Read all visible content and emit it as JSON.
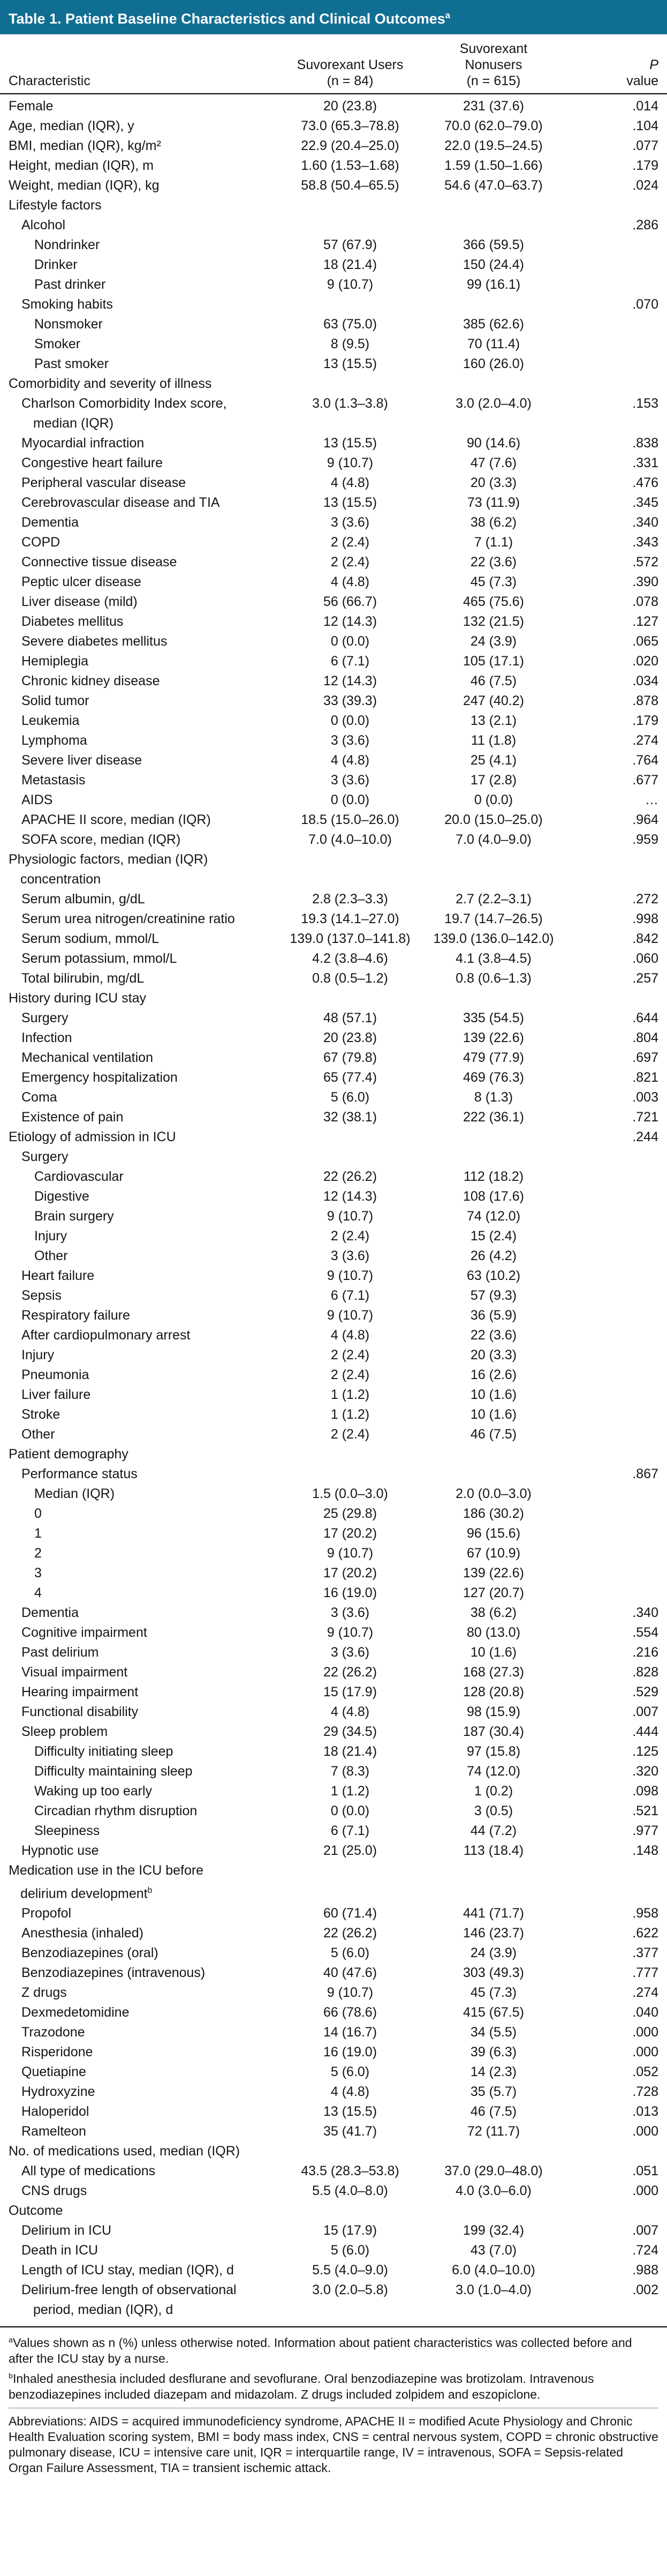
{
  "title": {
    "text": "Table 1. Patient Baseline Characteristics and Clinical Outcomes",
    "sup": "a"
  },
  "colors": {
    "header_bg": "#116e93",
    "header_text": "#ffffff",
    "rule": "#000000"
  },
  "columns": {
    "characteristic": "Characteristic",
    "group1": [
      "Suvorexant Users",
      "(n = 84)"
    ],
    "group2": [
      "Suvorexant",
      "Nonusers",
      "(n = 615)"
    ],
    "p": [
      "P",
      "value"
    ]
  },
  "rows": [
    {
      "label": "Female",
      "indent": 0,
      "c1": "20 (23.8)",
      "c2": "231 (37.6)",
      "p": ".014"
    },
    {
      "label": "Age, median (IQR), y",
      "indent": 0,
      "c1": "73.0 (65.3–78.8)",
      "c2": "70.0 (62.0–79.0)",
      "p": ".104"
    },
    {
      "label": "BMI, median (IQR), kg/m²",
      "indent": 0,
      "c1": "22.9 (20.4–25.0)",
      "c2": "22.0 (19.5–24.5)",
      "p": ".077"
    },
    {
      "label": "Height, median (IQR), m",
      "indent": 0,
      "c1": "1.60 (1.53–1.68)",
      "c2": "1.59 (1.50–1.66)",
      "p": ".179"
    },
    {
      "label": "Weight, median (IQR), kg",
      "indent": 0,
      "c1": "58.8 (50.4–65.5)",
      "c2": "54.6 (47.0–63.7)",
      "p": ".024"
    },
    {
      "label": "Lifestyle factors",
      "indent": 0
    },
    {
      "label": "Alcohol",
      "indent": 1,
      "p": ".286"
    },
    {
      "label": "Nondrinker",
      "indent": 2,
      "c1": "57 (67.9)",
      "c2": "366 (59.5)"
    },
    {
      "label": "Drinker",
      "indent": 2,
      "c1": "18 (21.4)",
      "c2": "150 (24.4)"
    },
    {
      "label": "Past drinker",
      "indent": 2,
      "c1": "9 (10.7)",
      "c2": "99 (16.1)"
    },
    {
      "label": "Smoking habits",
      "indent": 1,
      "p": ".070"
    },
    {
      "label": "Nonsmoker",
      "indent": 2,
      "c1": "63 (75.0)",
      "c2": "385 (62.6)"
    },
    {
      "label": "Smoker",
      "indent": 2,
      "c1": "8 (9.5)",
      "c2": "70 (11.4)"
    },
    {
      "label": "Past smoker",
      "indent": 2,
      "c1": "13 (15.5)",
      "c2": "160 (26.0)"
    },
    {
      "label": "Comorbidity and severity of illness",
      "indent": 0
    },
    {
      "label": "Charlson Comorbidity Index score,\nmedian (IQR)",
      "indent": 1,
      "c1": "3.0 (1.3–3.8)",
      "c2": "3.0 (2.0–4.0)",
      "p": ".153"
    },
    {
      "label": "Myocardial infraction",
      "indent": 1,
      "c1": "13 (15.5)",
      "c2": "90 (14.6)",
      "p": ".838"
    },
    {
      "label": "Congestive heart failure",
      "indent": 1,
      "c1": "9 (10.7)",
      "c2": "47 (7.6)",
      "p": ".331"
    },
    {
      "label": "Peripheral vascular disease",
      "indent": 1,
      "c1": "4 (4.8)",
      "c2": "20 (3.3)",
      "p": ".476"
    },
    {
      "label": "Cerebrovascular disease and TIA",
      "indent": 1,
      "c1": "13 (15.5)",
      "c2": "73 (11.9)",
      "p": ".345"
    },
    {
      "label": "Dementia",
      "indent": 1,
      "c1": "3 (3.6)",
      "c2": "38 (6.2)",
      "p": ".340"
    },
    {
      "label": "COPD",
      "indent": 1,
      "c1": "2 (2.4)",
      "c2": "7 (1.1)",
      "p": ".343"
    },
    {
      "label": "Connective tissue disease",
      "indent": 1,
      "c1": "2 (2.4)",
      "c2": "22 (3.6)",
      "p": ".572"
    },
    {
      "label": "Peptic ulcer disease",
      "indent": 1,
      "c1": "4 (4.8)",
      "c2": "45 (7.3)",
      "p": ".390"
    },
    {
      "label": "Liver disease (mild)",
      "indent": 1,
      "c1": "56 (66.7)",
      "c2": "465 (75.6)",
      "p": ".078"
    },
    {
      "label": "Diabetes mellitus",
      "indent": 1,
      "c1": "12 (14.3)",
      "c2": "132 (21.5)",
      "p": ".127"
    },
    {
      "label": "Severe diabetes mellitus",
      "indent": 1,
      "c1": "0 (0.0)",
      "c2": "24 (3.9)",
      "p": ".065"
    },
    {
      "label": "Hemiplegia",
      "indent": 1,
      "c1": "6 (7.1)",
      "c2": "105 (17.1)",
      "p": ".020"
    },
    {
      "label": "Chronic kidney disease",
      "indent": 1,
      "c1": "12 (14.3)",
      "c2": "46 (7.5)",
      "p": ".034"
    },
    {
      "label": "Solid tumor",
      "indent": 1,
      "c1": "33 (39.3)",
      "c2": "247 (40.2)",
      "p": ".878"
    },
    {
      "label": "Leukemia",
      "indent": 1,
      "c1": "0 (0.0)",
      "c2": "13 (2.1)",
      "p": ".179"
    },
    {
      "label": "Lymphoma",
      "indent": 1,
      "c1": "3 (3.6)",
      "c2": "11 (1.8)",
      "p": ".274"
    },
    {
      "label": "Severe liver disease",
      "indent": 1,
      "c1": "4 (4.8)",
      "c2": "25 (4.1)",
      "p": ".764"
    },
    {
      "label": "Metastasis",
      "indent": 1,
      "c1": "3 (3.6)",
      "c2": "17 (2.8)",
      "p": ".677"
    },
    {
      "label": "AIDS",
      "indent": 1,
      "c1": "0 (0.0)",
      "c2": "0 (0.0)",
      "p": "…"
    },
    {
      "label": "APACHE II score, median (IQR)",
      "indent": 1,
      "c1": "18.5 (15.0–26.0)",
      "c2": "20.0 (15.0–25.0)",
      "p": ".964"
    },
    {
      "label": "SOFA score, median (IQR)",
      "indent": 1,
      "c1": "7.0 (4.0–10.0)",
      "c2": "7.0 (4.0–9.0)",
      "p": ".959"
    },
    {
      "label": "Physiologic factors, median (IQR)\nconcentration",
      "indent": 0
    },
    {
      "label": "Serum albumin, g/dL",
      "indent": 1,
      "c1": "2.8 (2.3–3.3)",
      "c2": "2.7 (2.2–3.1)",
      "p": ".272"
    },
    {
      "label": "Serum urea nitrogen/creatinine ratio",
      "indent": 1,
      "c1": "19.3 (14.1–27.0)",
      "c2": "19.7 (14.7–26.5)",
      "p": ".998"
    },
    {
      "label": "Serum sodium, mmol/L",
      "indent": 1,
      "c1": "139.0 (137.0–141.8)",
      "c2": "139.0 (136.0–142.0)",
      "p": ".842"
    },
    {
      "label": "Serum potassium, mmol/L",
      "indent": 1,
      "c1": "4.2 (3.8–4.6)",
      "c2": "4.1 (3.8–4.5)",
      "p": ".060"
    },
    {
      "label": "Total bilirubin, mg/dL",
      "indent": 1,
      "c1": "0.8 (0.5–1.2)",
      "c2": "0.8 (0.6–1.3)",
      "p": ".257"
    },
    {
      "label": "History during ICU stay",
      "indent": 0
    },
    {
      "label": "Surgery",
      "indent": 1,
      "c1": "48 (57.1)",
      "c2": "335 (54.5)",
      "p": ".644"
    },
    {
      "label": "Infection",
      "indent": 1,
      "c1": "20 (23.8)",
      "c2": "139 (22.6)",
      "p": ".804"
    },
    {
      "label": "Mechanical ventilation",
      "indent": 1,
      "c1": "67 (79.8)",
      "c2": "479 (77.9)",
      "p": ".697"
    },
    {
      "label": "Emergency hospitalization",
      "indent": 1,
      "c1": "65 (77.4)",
      "c2": "469 (76.3)",
      "p": ".821"
    },
    {
      "label": "Coma",
      "indent": 1,
      "c1": "5 (6.0)",
      "c2": "8 (1.3)",
      "p": ".003"
    },
    {
      "label": "Existence of pain",
      "indent": 1,
      "c1": "32 (38.1)",
      "c2": "222 (36.1)",
      "p": ".721"
    },
    {
      "label": "Etiology of admission in ICU",
      "indent": 0,
      "p": ".244"
    },
    {
      "label": "Surgery",
      "indent": 1
    },
    {
      "label": "Cardiovascular",
      "indent": 2,
      "c1": "22 (26.2)",
      "c2": "112 (18.2)"
    },
    {
      "label": "Digestive",
      "indent": 2,
      "c1": "12 (14.3)",
      "c2": "108 (17.6)"
    },
    {
      "label": "Brain surgery",
      "indent": 2,
      "c1": "9 (10.7)",
      "c2": "74 (12.0)"
    },
    {
      "label": "Injury",
      "indent": 2,
      "c1": "2 (2.4)",
      "c2": "15 (2.4)"
    },
    {
      "label": "Other",
      "indent": 2,
      "c1": "3 (3.6)",
      "c2": "26 (4.2)"
    },
    {
      "label": "Heart failure",
      "indent": 1,
      "c1": "9 (10.7)",
      "c2": "63 (10.2)"
    },
    {
      "label": "Sepsis",
      "indent": 1,
      "c1": "6 (7.1)",
      "c2": "57 (9.3)"
    },
    {
      "label": "Respiratory failure",
      "indent": 1,
      "c1": "9 (10.7)",
      "c2": "36 (5.9)"
    },
    {
      "label": "After cardiopulmonary arrest",
      "indent": 1,
      "c1": "4 (4.8)",
      "c2": "22 (3.6)"
    },
    {
      "label": "Injury",
      "indent": 1,
      "c1": "2 (2.4)",
      "c2": "20 (3.3)"
    },
    {
      "label": "Pneumonia",
      "indent": 1,
      "c1": "2 (2.4)",
      "c2": "16 (2.6)"
    },
    {
      "label": "Liver failure",
      "indent": 1,
      "c1": "1 (1.2)",
      "c2": "10 (1.6)"
    },
    {
      "label": "Stroke",
      "indent": 1,
      "c1": "1 (1.2)",
      "c2": "10 (1.6)"
    },
    {
      "label": "Other",
      "indent": 1,
      "c1": "2 (2.4)",
      "c2": "46 (7.5)"
    },
    {
      "label": "Patient demography",
      "indent": 0
    },
    {
      "label": "Performance status",
      "indent": 1,
      "p": ".867"
    },
    {
      "label": "Median (IQR)",
      "indent": 2,
      "c1": "1.5 (0.0–3.0)",
      "c2": "2.0 (0.0–3.0)"
    },
    {
      "label": "0",
      "indent": 2,
      "c1": "25 (29.8)",
      "c2": "186 (30.2)"
    },
    {
      "label": "1",
      "indent": 2,
      "c1": "17 (20.2)",
      "c2": "96 (15.6)"
    },
    {
      "label": "2",
      "indent": 2,
      "c1": "9 (10.7)",
      "c2": "67 (10.9)"
    },
    {
      "label": "3",
      "indent": 2,
      "c1": "17 (20.2)",
      "c2": "139 (22.6)"
    },
    {
      "label": "4",
      "indent": 2,
      "c1": "16 (19.0)",
      "c2": "127 (20.7)"
    },
    {
      "label": "Dementia",
      "indent": 1,
      "c1": "3 (3.6)",
      "c2": "38 (6.2)",
      "p": ".340"
    },
    {
      "label": "Cognitive impairment",
      "indent": 1,
      "c1": "9 (10.7)",
      "c2": "80 (13.0)",
      "p": ".554"
    },
    {
      "label": "Past delirium",
      "indent": 1,
      "c1": "3 (3.6)",
      "c2": "10 (1.6)",
      "p": ".216"
    },
    {
      "label": "Visual impairment",
      "indent": 1,
      "c1": "22 (26.2)",
      "c2": "168 (27.3)",
      "p": ".828"
    },
    {
      "label": "Hearing impairment",
      "indent": 1,
      "c1": "15 (17.9)",
      "c2": "128 (20.8)",
      "p": ".529"
    },
    {
      "label": "Functional disability",
      "indent": 1,
      "c1": "4 (4.8)",
      "c2": "98 (15.9)",
      "p": ".007"
    },
    {
      "label": "Sleep problem",
      "indent": 1,
      "c1": "29 (34.5)",
      "c2": "187 (30.4)",
      "p": ".444"
    },
    {
      "label": "Difficulty initiating sleep",
      "indent": 2,
      "c1": "18 (21.4)",
      "c2": "97 (15.8)",
      "p": ".125"
    },
    {
      "label": "Difficulty maintaining sleep",
      "indent": 2,
      "c1": "7 (8.3)",
      "c2": "74 (12.0)",
      "p": ".320"
    },
    {
      "label": "Waking up too early",
      "indent": 2,
      "c1": "1 (1.2)",
      "c2": "1 (0.2)",
      "p": ".098"
    },
    {
      "label": "Circadian rhythm disruption",
      "indent": 2,
      "c1": "0 (0.0)",
      "c2": "3 (0.5)",
      "p": ".521"
    },
    {
      "label": "Sleepiness",
      "indent": 2,
      "c1": "6 (7.1)",
      "c2": "44 (7.2)",
      "p": ".977"
    },
    {
      "label": "Hypnotic use",
      "indent": 1,
      "c1": "21 (25.0)",
      "c2": "113 (18.4)",
      "p": ".148"
    },
    {
      "label": "Medication use in the ICU before\ndelirium development",
      "indent": 0,
      "sup": "b"
    },
    {
      "label": "Propofol",
      "indent": 1,
      "c1": "60 (71.4)",
      "c2": "441 (71.7)",
      "p": ".958"
    },
    {
      "label": "Anesthesia (inhaled)",
      "indent": 1,
      "c1": "22 (26.2)",
      "c2": "146 (23.7)",
      "p": ".622"
    },
    {
      "label": "Benzodiazepines (oral)",
      "indent": 1,
      "c1": "5 (6.0)",
      "c2": "24 (3.9)",
      "p": ".377"
    },
    {
      "label": "Benzodiazepines (intravenous)",
      "indent": 1,
      "c1": "40 (47.6)",
      "c2": "303 (49.3)",
      "p": ".777"
    },
    {
      "label": "Z drugs",
      "indent": 1,
      "c1": "9 (10.7)",
      "c2": "45 (7.3)",
      "p": ".274"
    },
    {
      "label": "Dexmedetomidine",
      "indent": 1,
      "c1": "66 (78.6)",
      "c2": "415 (67.5)",
      "p": ".040"
    },
    {
      "label": "Trazodone",
      "indent": 1,
      "c1": "14 (16.7)",
      "c2": "34 (5.5)",
      "p": ".000"
    },
    {
      "label": "Risperidone",
      "indent": 1,
      "c1": "16 (19.0)",
      "c2": "39 (6.3)",
      "p": ".000"
    },
    {
      "label": "Quetiapine",
      "indent": 1,
      "c1": "5 (6.0)",
      "c2": "14 (2.3)",
      "p": ".052"
    },
    {
      "label": "Hydroxyzine",
      "indent": 1,
      "c1": "4 (4.8)",
      "c2": "35 (5.7)",
      "p": ".728"
    },
    {
      "label": "Haloperidol",
      "indent": 1,
      "c1": "13 (15.5)",
      "c2": "46 (7.5)",
      "p": ".013"
    },
    {
      "label": "Ramelteon",
      "indent": 1,
      "c1": "35 (41.7)",
      "c2": "72 (11.7)",
      "p": ".000"
    },
    {
      "label": "No. of medications used, median (IQR)",
      "indent": 0
    },
    {
      "label": "All type of medications",
      "indent": 1,
      "c1": "43.5 (28.3–53.8)",
      "c2": "37.0 (29.0–48.0)",
      "p": ".051"
    },
    {
      "label": "CNS drugs",
      "indent": 1,
      "c1": "5.5 (4.0–8.0)",
      "c2": "4.0 (3.0–6.0)",
      "p": ".000"
    },
    {
      "label": "Outcome",
      "indent": 0
    },
    {
      "label": "Delirium in ICU",
      "indent": 1,
      "c1": "15 (17.9)",
      "c2": "199 (32.4)",
      "p": ".007"
    },
    {
      "label": "Death in ICU",
      "indent": 1,
      "c1": "5 (6.0)",
      "c2": "43 (7.0)",
      "p": ".724"
    },
    {
      "label": "Length of ICU stay, median (IQR), d",
      "indent": 1,
      "c1": "5.5 (4.0–9.0)",
      "c2": "6.0 (4.0–10.0)",
      "p": ".988"
    },
    {
      "label": "Delirium-free length of observational\nperiod, median (IQR), d",
      "indent": 1,
      "c1": "3.0 (2.0–5.8)",
      "c2": "3.0 (1.0–4.0)",
      "p": ".002"
    }
  ],
  "footnotes": [
    {
      "sup": "a",
      "rule": false,
      "text": "Values shown as n (%) unless otherwise noted. Information about patient characteristics was collected before and after the ICU stay by a nurse."
    },
    {
      "sup": "b",
      "rule": false,
      "text": "Inhaled anesthesia included desflurane and sevoflurane. Oral benzodiazepine was brotizolam. Intravenous benzodiazepines included diazepam and midazolam. Z drugs included zolpidem and eszopiclone."
    },
    {
      "sup": "",
      "rule": true,
      "text": "Abbreviations: AIDS = acquired immunodeficiency syndrome, APACHE II = modified Acute Physiology and Chronic Health Evaluation scoring system, BMI = body mass index, CNS = central nervous system, COPD = chronic obstructive pulmonary disease, ICU = intensive care unit, IQR = interquartile range, IV = intravenous, SOFA = Sepsis-related Organ Failure Assessment, TIA = transient ischemic attack."
    }
  ]
}
